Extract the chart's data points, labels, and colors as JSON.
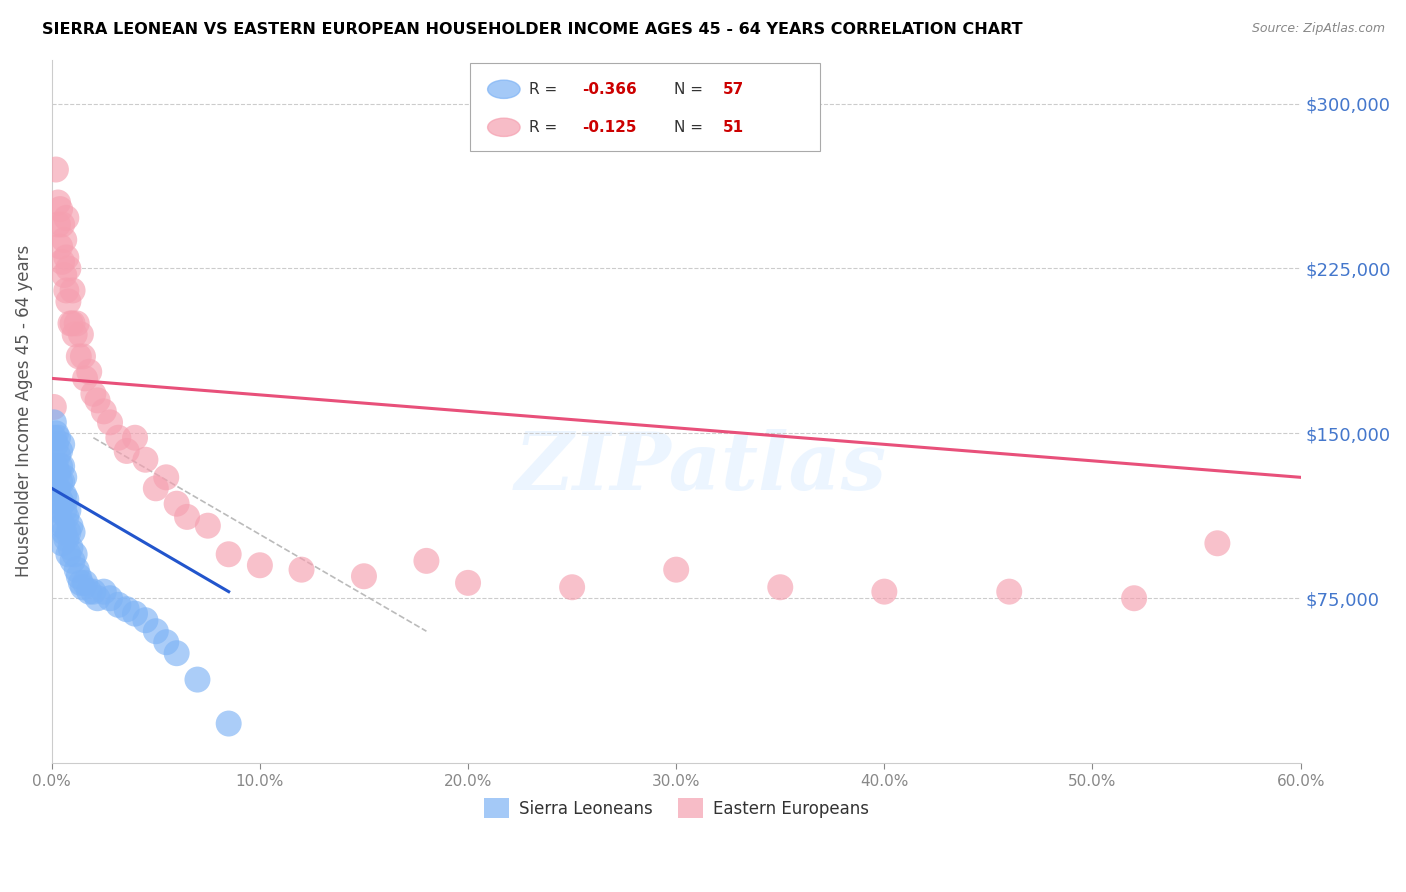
{
  "title": "SIERRA LEONEAN VS EASTERN EUROPEAN HOUSEHOLDER INCOME AGES 45 - 64 YEARS CORRELATION CHART",
  "source": "Source: ZipAtlas.com",
  "ylabel": "Householder Income Ages 45 - 64 years",
  "yticks": [
    0,
    75000,
    150000,
    225000,
    300000
  ],
  "ytick_labels": [
    "",
    "$75,000",
    "$150,000",
    "$225,000",
    "$300,000"
  ],
  "xlim": [
    0.0,
    0.6
  ],
  "ylim": [
    0,
    320000
  ],
  "legend_label1": "Sierra Leoneans",
  "legend_label2": "Eastern Europeans",
  "color_blue": "#7EB3F5",
  "color_pink": "#F5A0B0",
  "color_blue_line": "#2255CC",
  "color_pink_line": "#E8507A",
  "color_dashed": "#BBBBBB",
  "color_ytick": "#4477CC",
  "watermark": "ZIPatlas",
  "sierra_x": [
    0.001,
    0.001,
    0.001,
    0.002,
    0.002,
    0.002,
    0.002,
    0.003,
    0.003,
    0.003,
    0.003,
    0.003,
    0.004,
    0.004,
    0.004,
    0.004,
    0.004,
    0.005,
    0.005,
    0.005,
    0.005,
    0.005,
    0.005,
    0.006,
    0.006,
    0.006,
    0.006,
    0.007,
    0.007,
    0.007,
    0.008,
    0.008,
    0.008,
    0.009,
    0.009,
    0.01,
    0.01,
    0.011,
    0.012,
    0.013,
    0.014,
    0.015,
    0.016,
    0.018,
    0.02,
    0.022,
    0.025,
    0.028,
    0.032,
    0.036,
    0.04,
    0.045,
    0.05,
    0.055,
    0.06,
    0.07,
    0.085
  ],
  "sierra_y": [
    155000,
    148000,
    135000,
    150000,
    145000,
    135000,
    125000,
    148000,
    140000,
    132000,
    125000,
    115000,
    142000,
    135000,
    128000,
    120000,
    110000,
    145000,
    135000,
    128000,
    118000,
    108000,
    100000,
    130000,
    122000,
    115000,
    105000,
    120000,
    112000,
    102000,
    115000,
    105000,
    95000,
    108000,
    98000,
    105000,
    92000,
    95000,
    88000,
    85000,
    82000,
    80000,
    82000,
    78000,
    78000,
    75000,
    78000,
    75000,
    72000,
    70000,
    68000,
    65000,
    60000,
    55000,
    50000,
    38000,
    18000
  ],
  "eastern_x": [
    0.001,
    0.002,
    0.003,
    0.003,
    0.004,
    0.004,
    0.005,
    0.005,
    0.006,
    0.006,
    0.007,
    0.007,
    0.007,
    0.008,
    0.008,
    0.009,
    0.01,
    0.01,
    0.011,
    0.012,
    0.013,
    0.014,
    0.015,
    0.016,
    0.018,
    0.02,
    0.022,
    0.025,
    0.028,
    0.032,
    0.036,
    0.04,
    0.045,
    0.05,
    0.055,
    0.06,
    0.065,
    0.075,
    0.085,
    0.1,
    0.12,
    0.15,
    0.18,
    0.2,
    0.25,
    0.3,
    0.35,
    0.4,
    0.46,
    0.52,
    0.56
  ],
  "eastern_y": [
    162000,
    270000,
    255000,
    245000,
    235000,
    252000,
    245000,
    228000,
    238000,
    222000,
    248000,
    230000,
    215000,
    225000,
    210000,
    200000,
    215000,
    200000,
    195000,
    200000,
    185000,
    195000,
    185000,
    175000,
    178000,
    168000,
    165000,
    160000,
    155000,
    148000,
    142000,
    148000,
    138000,
    125000,
    130000,
    118000,
    112000,
    108000,
    95000,
    90000,
    88000,
    85000,
    92000,
    82000,
    80000,
    88000,
    80000,
    78000,
    78000,
    75000,
    100000
  ],
  "pink_line_x": [
    0.0,
    0.6
  ],
  "pink_line_y": [
    175000,
    130000
  ],
  "blue_line_x": [
    0.0,
    0.085
  ],
  "blue_line_y": [
    125000,
    78000
  ],
  "diag_line_x": [
    0.02,
    0.18
  ],
  "diag_line_y": [
    148000,
    60000
  ]
}
